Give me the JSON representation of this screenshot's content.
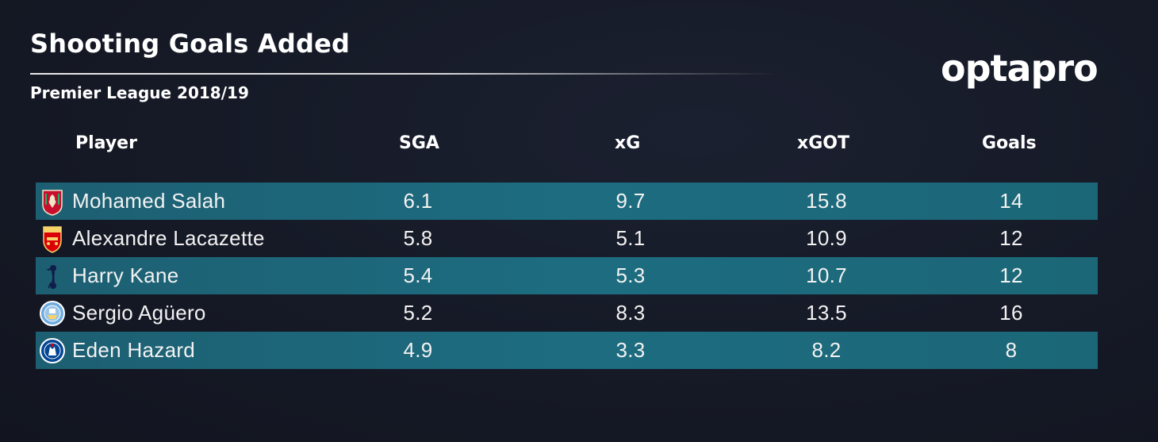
{
  "header": {
    "title": "Shooting Goals Added",
    "subtitle": "Premier League 2018/19",
    "logo_text": "optapro"
  },
  "colors": {
    "background": "#161a26",
    "row_highlight": "#1d6c80",
    "text": "#ffffff"
  },
  "chart_data": {
    "type": "table",
    "title": "Shooting Goals Added",
    "subtitle": "Premier League 2018/19",
    "columns": [
      "Player",
      "SGA",
      "xG",
      "xGOT",
      "Goals"
    ],
    "rows": [
      {
        "player": "Mohamed Salah",
        "club_badge": "liverpool-badge-icon",
        "sga": "6.1",
        "xg": "9.7",
        "xgot": "15.8",
        "goals": "14"
      },
      {
        "player": "Alexandre Lacazette",
        "club_badge": "arsenal-badge-icon",
        "sga": "5.8",
        "xg": "5.1",
        "xgot": "10.9",
        "goals": "12"
      },
      {
        "player": "Harry Kane",
        "club_badge": "tottenham-badge-icon",
        "sga": "5.4",
        "xg": "5.3",
        "xgot": "10.7",
        "goals": "12"
      },
      {
        "player": "Sergio Agüero",
        "club_badge": "man-city-badge-icon",
        "sga": "5.2",
        "xg": "8.3",
        "xgot": "13.5",
        "goals": "16"
      },
      {
        "player": "Eden Hazard",
        "club_badge": "chelsea-badge-icon",
        "sga": "4.9",
        "xg": "3.3",
        "xgot": "8.2",
        "goals": "8"
      }
    ]
  }
}
